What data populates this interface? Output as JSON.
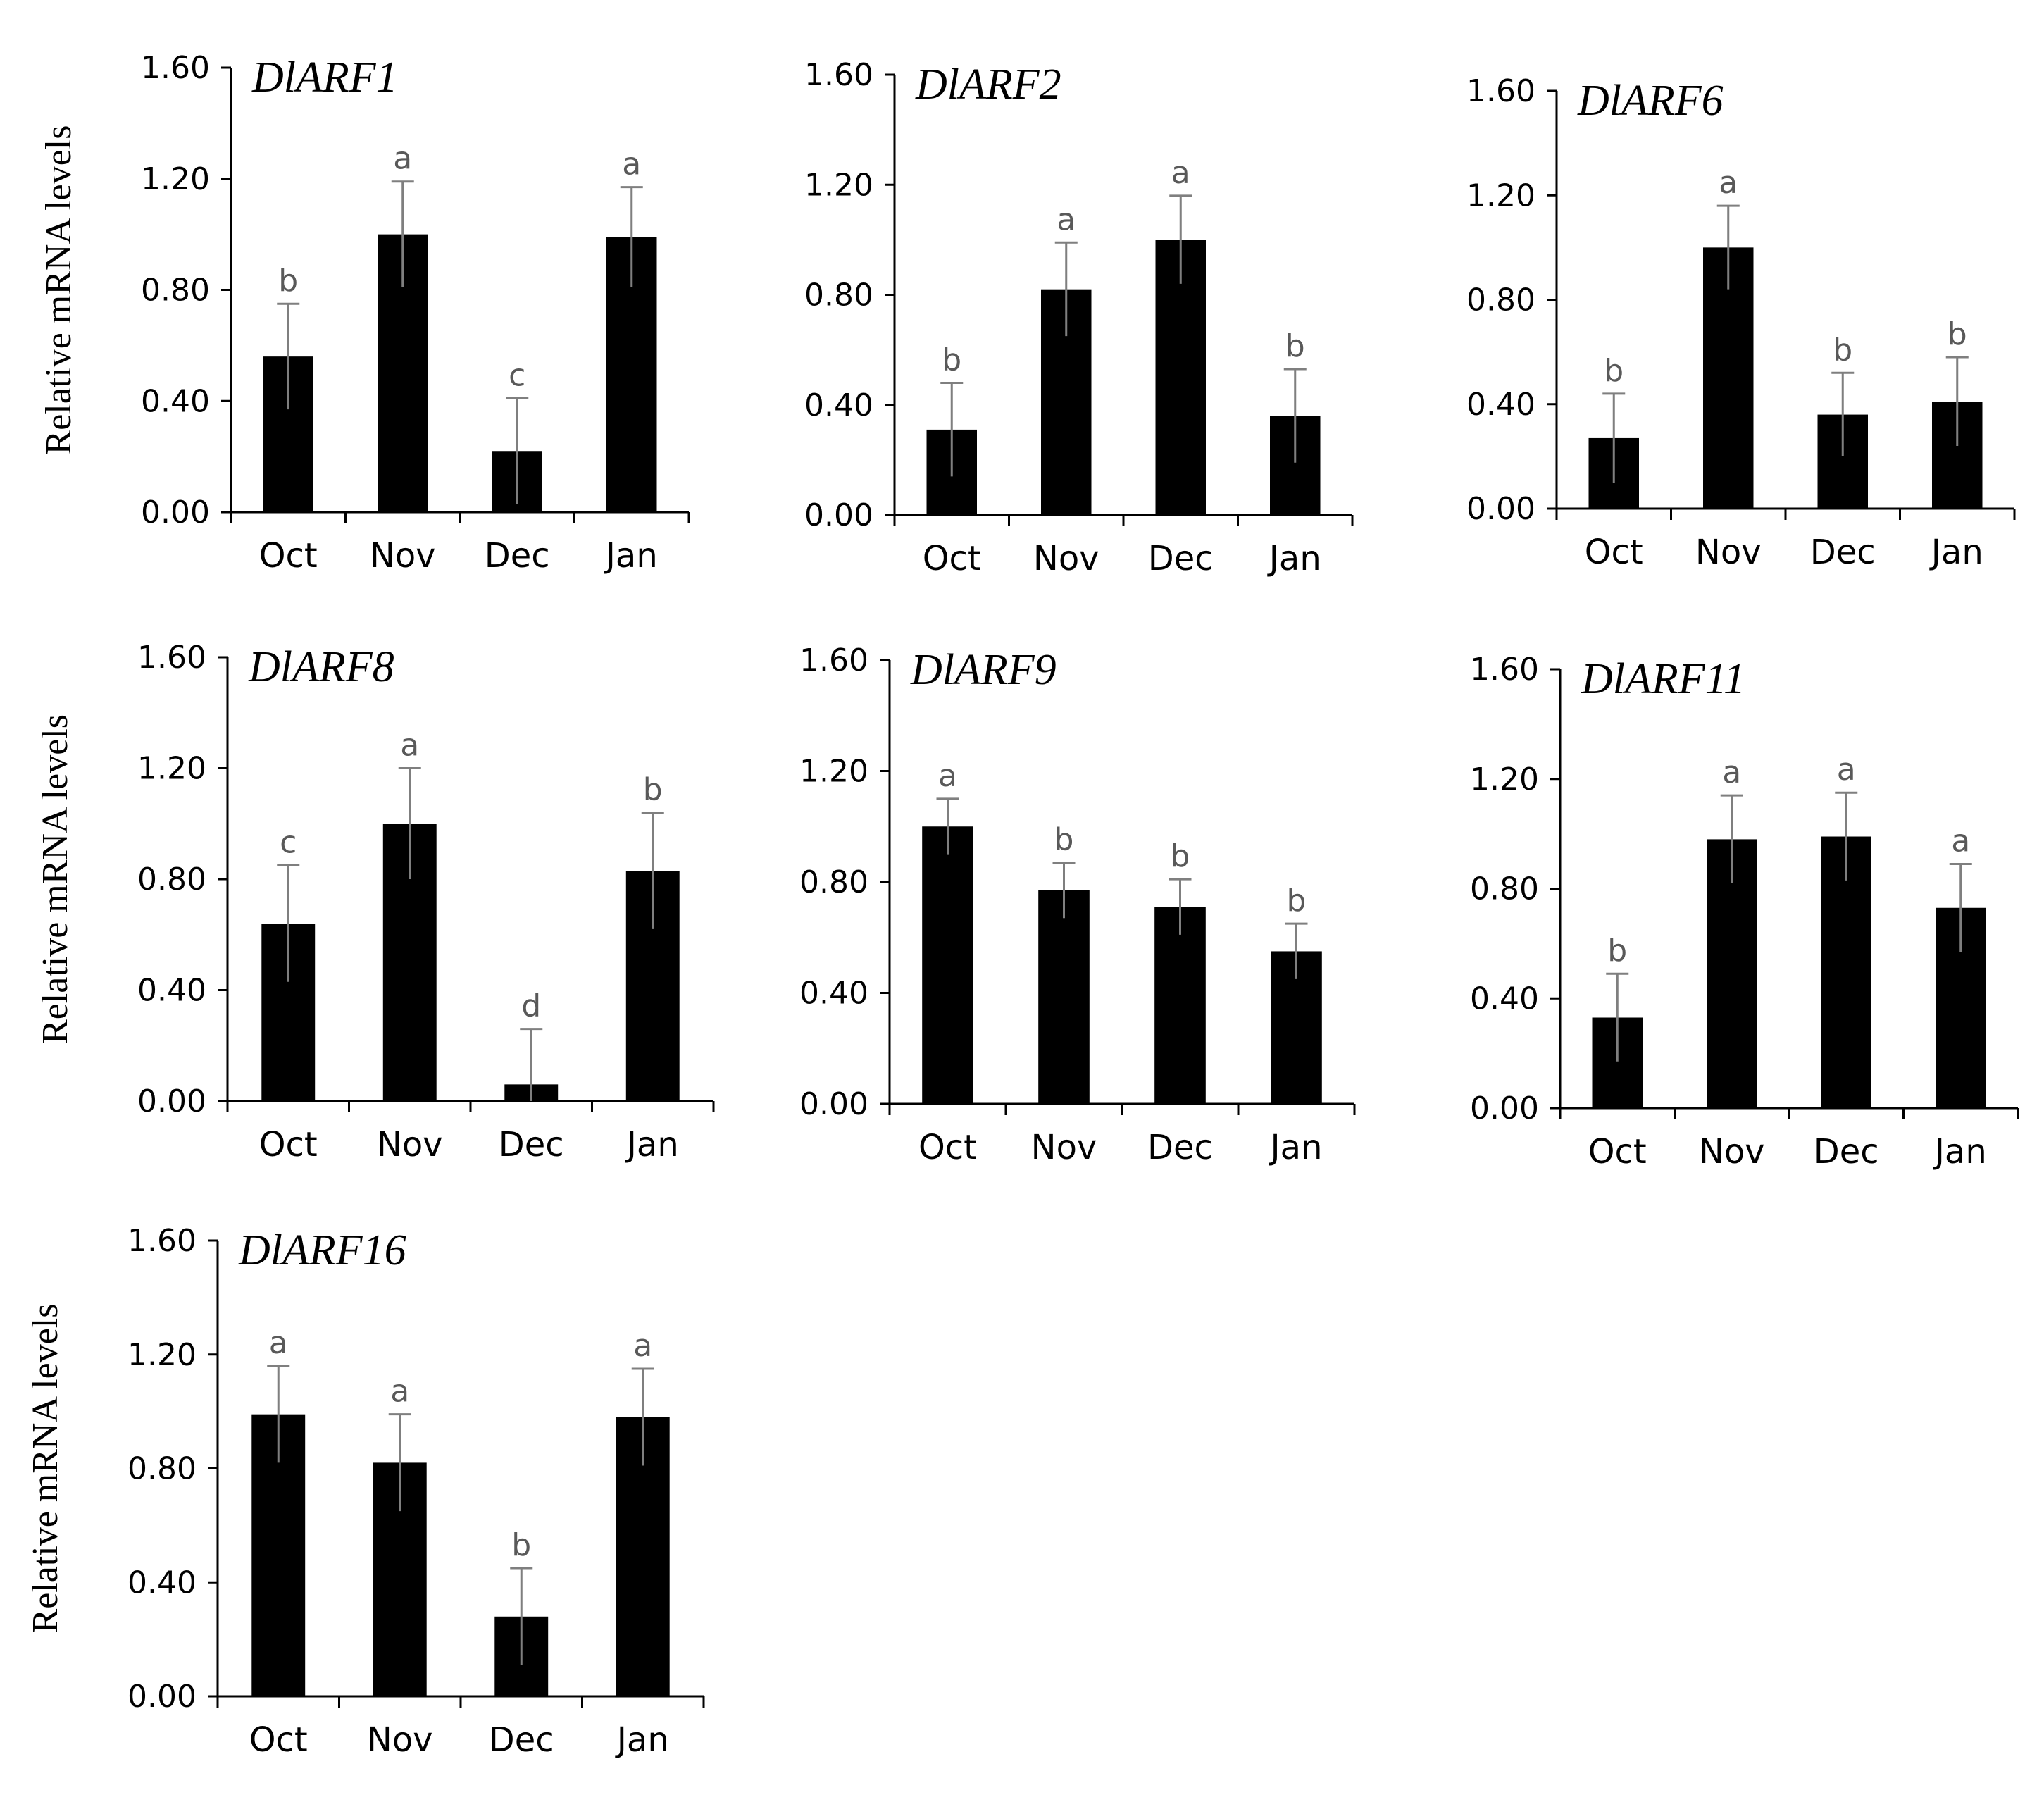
{
  "colors": {
    "bar": "#000000",
    "axis": "#000000",
    "error_bar": "#7f7f7f",
    "sig_label": "#595959"
  },
  "chart_data": [
    {
      "type": "bar",
      "title": "DlARF1",
      "ylabel": "Relative mRNA  levels",
      "xlabel": "",
      "categories": [
        "Oct",
        "Nov",
        "Dec",
        "Jan"
      ],
      "values": [
        0.56,
        1.0,
        0.22,
        0.99
      ],
      "errors": [
        0.19,
        0.19,
        0.19,
        0.18
      ],
      "significance": [
        "b",
        "a",
        "c",
        "a"
      ],
      "ylim": [
        0,
        1.6
      ],
      "yticks": [
        "0.00",
        "0.40",
        "0.80",
        "1.20",
        "1.60"
      ]
    },
    {
      "type": "bar",
      "title": "DlARF2",
      "ylabel": "",
      "xlabel": "",
      "categories": [
        "Oct",
        "Nov",
        "Dec",
        "Jan"
      ],
      "values": [
        0.31,
        0.82,
        1.0,
        0.36
      ],
      "errors": [
        0.17,
        0.17,
        0.16,
        0.17
      ],
      "significance": [
        "b",
        "a",
        "a",
        "b"
      ],
      "ylim": [
        0,
        1.6
      ],
      "yticks": [
        "0.00",
        "0.40",
        "0.80",
        "1.20",
        "1.60"
      ]
    },
    {
      "type": "bar",
      "title": "DlARF6",
      "ylabel": "",
      "xlabel": "",
      "categories": [
        "Oct",
        "Nov",
        "Dec",
        "Jan"
      ],
      "values": [
        0.27,
        1.0,
        0.36,
        0.41
      ],
      "errors": [
        0.17,
        0.16,
        0.16,
        0.17
      ],
      "significance": [
        "b",
        "a",
        "b",
        "b"
      ],
      "ylim": [
        0,
        1.6
      ],
      "yticks": [
        "0.00",
        "0.40",
        "0.80",
        "1.20",
        "1.60"
      ]
    },
    {
      "type": "bar",
      "title": "DlARF8",
      "ylabel": "Relative mRNA  levels",
      "xlabel": "",
      "categories": [
        "Oct",
        "Nov",
        "Dec",
        "Jan"
      ],
      "values": [
        0.64,
        1.0,
        0.06,
        0.83
      ],
      "errors": [
        0.21,
        0.2,
        0.2,
        0.21
      ],
      "significance": [
        "c",
        "a",
        "d",
        "b"
      ],
      "ylim": [
        0,
        1.6
      ],
      "yticks": [
        "0.00",
        "0.40",
        "0.80",
        "1.20",
        "1.60"
      ]
    },
    {
      "type": "bar",
      "title": "DlARF9",
      "ylabel": "",
      "xlabel": "",
      "categories": [
        "Oct",
        "Nov",
        "Dec",
        "Jan"
      ],
      "values": [
        1.0,
        0.77,
        0.71,
        0.55
      ],
      "errors": [
        0.1,
        0.1,
        0.1,
        0.1
      ],
      "significance": [
        "a",
        "b",
        "b",
        "b"
      ],
      "ylim": [
        0,
        1.6
      ],
      "yticks": [
        "0.00",
        "0.40",
        "0.80",
        "1.20",
        "1.60"
      ]
    },
    {
      "type": "bar",
      "title": "DlARF11",
      "ylabel": "",
      "xlabel": "",
      "categories": [
        "Oct",
        "Nov",
        "Dec",
        "Jan"
      ],
      "values": [
        0.33,
        0.98,
        0.99,
        0.73
      ],
      "errors": [
        0.16,
        0.16,
        0.16,
        0.16
      ],
      "significance": [
        "b",
        "a",
        "a",
        "a"
      ],
      "ylim": [
        0,
        1.6
      ],
      "yticks": [
        "0.00",
        "0.40",
        "0.80",
        "1.20",
        "1.60"
      ]
    },
    {
      "type": "bar",
      "title": "DlARF16",
      "ylabel": "Relative mRNA  levels",
      "xlabel": "",
      "categories": [
        "Oct",
        "Nov",
        "Dec",
        "Jan"
      ],
      "values": [
        0.99,
        0.82,
        0.28,
        0.98
      ],
      "errors": [
        0.17,
        0.17,
        0.17,
        0.17
      ],
      "significance": [
        "a",
        "a",
        "b",
        "a"
      ],
      "ylim": [
        0,
        1.6
      ],
      "yticks": [
        "0.00",
        "0.40",
        "0.80",
        "1.20",
        "1.60"
      ]
    }
  ]
}
